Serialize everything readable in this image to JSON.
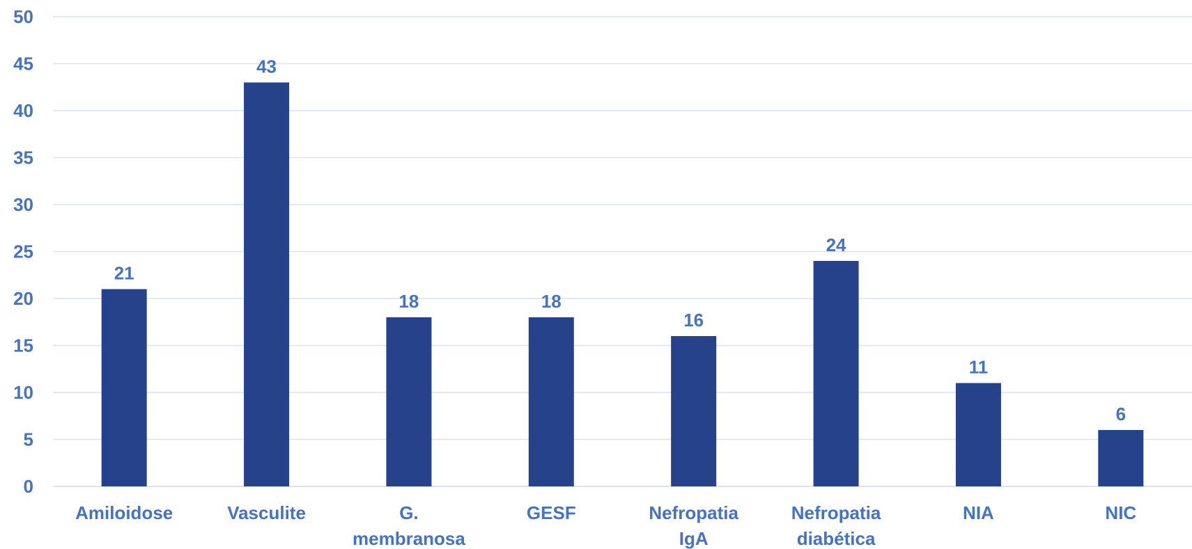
{
  "chart_data": {
    "type": "bar",
    "categories": [
      [
        "Amiloidose"
      ],
      [
        "Vasculite"
      ],
      [
        "G.",
        "membranosa"
      ],
      [
        "GESF"
      ],
      [
        "Nefropatia",
        "IgA"
      ],
      [
        "Nefropatia",
        "diabética"
      ],
      [
        "NIA"
      ],
      [
        "NIC"
      ]
    ],
    "values": [
      21,
      43,
      18,
      18,
      16,
      24,
      11,
      6
    ],
    "ylim": [
      0,
      50
    ],
    "yticks": [
      0,
      5,
      10,
      15,
      20,
      25,
      30,
      35,
      40,
      45,
      50
    ],
    "grid": true,
    "colors": {
      "bar": "#26428b",
      "label": "#4472c4",
      "grid": "#d9e1f2",
      "axis": "#d0d8ea"
    }
  }
}
